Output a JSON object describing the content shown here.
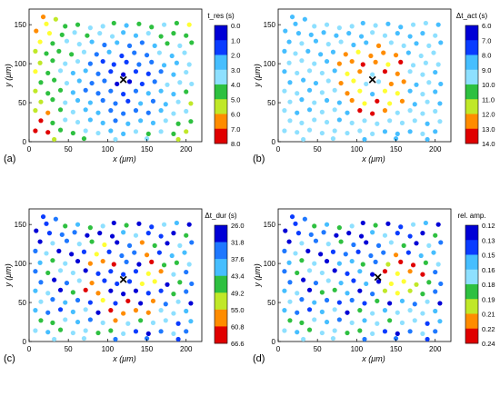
{
  "palette": [
    "#0000d6",
    "#0a3cff",
    "#1e78ff",
    "#46beff",
    "#8ee0ff",
    "#2ec040",
    "#c0e828",
    "#ffff33",
    "#ff8c00",
    "#e00000"
  ],
  "point_positions": [
    [
      18,
      160
    ],
    [
      34,
      157
    ],
    [
      22,
      151
    ],
    [
      46,
      148
    ],
    [
      62,
      150
    ],
    [
      78,
      146
    ],
    [
      94,
      148
    ],
    [
      108,
      152
    ],
    [
      124,
      149
    ],
    [
      140,
      151
    ],
    [
      156,
      147
    ],
    [
      172,
      150
    ],
    [
      188,
      152
    ],
    [
      204,
      150
    ],
    [
      9,
      142
    ],
    [
      26,
      139
    ],
    [
      42,
      137
    ],
    [
      58,
      140
    ],
    [
      74,
      136
    ],
    [
      90,
      139
    ],
    [
      106,
      135
    ],
    [
      120,
      140
    ],
    [
      136,
      136
    ],
    [
      152,
      139
    ],
    [
      168,
      135
    ],
    [
      184,
      139
    ],
    [
      200,
      136
    ],
    [
      14,
      128
    ],
    [
      30,
      126
    ],
    [
      48,
      129
    ],
    [
      64,
      125
    ],
    [
      80,
      128
    ],
    [
      96,
      124
    ],
    [
      112,
      127
    ],
    [
      128,
      123
    ],
    [
      144,
      127
    ],
    [
      160,
      123
    ],
    [
      176,
      126
    ],
    [
      192,
      123
    ],
    [
      207,
      127
    ],
    [
      8,
      116
    ],
    [
      22,
      113
    ],
    [
      38,
      116
    ],
    [
      54,
      112
    ],
    [
      70,
      115
    ],
    [
      86,
      112
    ],
    [
      102,
      115
    ],
    [
      118,
      110
    ],
    [
      134,
      114
    ],
    [
      150,
      111
    ],
    [
      166,
      114
    ],
    [
      182,
      110
    ],
    [
      198,
      114
    ],
    [
      14,
      101
    ],
    [
      30,
      104
    ],
    [
      46,
      100
    ],
    [
      62,
      103
    ],
    [
      78,
      100
    ],
    [
      94,
      103
    ],
    [
      108,
      99
    ],
    [
      124,
      102
    ],
    [
      140,
      99
    ],
    [
      156,
      102
    ],
    [
      172,
      98
    ],
    [
      188,
      101
    ],
    [
      204,
      99
    ],
    [
      8,
      90
    ],
    [
      24,
      88
    ],
    [
      40,
      91
    ],
    [
      56,
      88
    ],
    [
      72,
      91
    ],
    [
      88,
      87
    ],
    [
      104,
      90
    ],
    [
      120,
      86
    ],
    [
      136,
      90
    ],
    [
      152,
      87
    ],
    [
      168,
      90
    ],
    [
      184,
      86
    ],
    [
      200,
      89
    ],
    [
      15,
      76
    ],
    [
      32,
      79
    ],
    [
      48,
      75
    ],
    [
      64,
      78
    ],
    [
      80,
      75
    ],
    [
      96,
      78
    ],
    [
      112,
      74
    ],
    [
      128,
      77
    ],
    [
      144,
      74
    ],
    [
      160,
      77
    ],
    [
      176,
      73
    ],
    [
      192,
      76
    ],
    [
      207,
      74
    ],
    [
      8,
      65
    ],
    [
      24,
      62
    ],
    [
      40,
      66
    ],
    [
      56,
      63
    ],
    [
      72,
      66
    ],
    [
      88,
      62
    ],
    [
      104,
      65
    ],
    [
      120,
      61
    ],
    [
      136,
      65
    ],
    [
      152,
      62
    ],
    [
      168,
      65
    ],
    [
      184,
      61
    ],
    [
      200,
      64
    ],
    [
      15,
      51
    ],
    [
      30,
      54
    ],
    [
      46,
      50
    ],
    [
      62,
      53
    ],
    [
      78,
      50
    ],
    [
      94,
      53
    ],
    [
      110,
      49
    ],
    [
      126,
      52
    ],
    [
      142,
      49
    ],
    [
      158,
      52
    ],
    [
      174,
      48
    ],
    [
      190,
      51
    ],
    [
      206,
      49
    ],
    [
      8,
      40
    ],
    [
      24,
      37
    ],
    [
      40,
      41
    ],
    [
      56,
      38
    ],
    [
      72,
      41
    ],
    [
      88,
      37
    ],
    [
      104,
      40
    ],
    [
      120,
      36
    ],
    [
      136,
      40
    ],
    [
      152,
      37
    ],
    [
      168,
      40
    ],
    [
      184,
      36
    ],
    [
      200,
      39
    ],
    [
      15,
      27
    ],
    [
      30,
      24
    ],
    [
      46,
      28
    ],
    [
      62,
      25
    ],
    [
      78,
      28
    ],
    [
      94,
      24
    ],
    [
      110,
      27
    ],
    [
      126,
      23
    ],
    [
      142,
      27
    ],
    [
      158,
      24
    ],
    [
      174,
      27
    ],
    [
      190,
      23
    ],
    [
      206,
      26
    ],
    [
      8,
      14
    ],
    [
      24,
      12
    ],
    [
      40,
      15
    ],
    [
      56,
      11
    ],
    [
      72,
      14
    ],
    [
      88,
      11
    ],
    [
      104,
      14
    ],
    [
      120,
      10
    ],
    [
      136,
      13
    ],
    [
      152,
      10
    ],
    [
      168,
      13
    ],
    [
      184,
      10
    ],
    [
      200,
      13
    ],
    [
      32,
      3
    ],
    [
      70,
      4
    ],
    [
      110,
      3
    ],
    [
      150,
      4
    ],
    [
      190,
      3
    ]
  ],
  "chart_data": [
    {
      "type": "scatter",
      "panel_label": "(a)",
      "xlabel": "x (μm)",
      "ylabel": "y (μm)",
      "xlim": [
        0,
        220
      ],
      "ylim": [
        0,
        170
      ],
      "xticks": [
        0,
        50,
        100,
        150,
        200
      ],
      "yticks": [
        0,
        50,
        100,
        150
      ],
      "marker": {
        "label": "×",
        "x": 120,
        "y": 79
      },
      "colorbar": {
        "title": "t_res (s)",
        "ticks": [
          "0.0",
          "1.0",
          "2.0",
          "3.0",
          "4.0",
          "5.0",
          "6.0",
          "7.0",
          "8.0"
        ]
      },
      "color_mode": "radial_low",
      "color_spread": 1.0,
      "series": [
        {
          "values": "see point_positions; colour class by distance from marker"
        }
      ]
    },
    {
      "type": "scatter",
      "panel_label": "(b)",
      "xlabel": "x (μm)",
      "ylabel": "y (μm)",
      "xlim": [
        0,
        220
      ],
      "ylim": [
        0,
        170
      ],
      "xticks": [
        0,
        50,
        100,
        150,
        200
      ],
      "yticks": [
        0,
        50,
        100,
        150
      ],
      "marker": {
        "label": "×",
        "x": 120,
        "y": 79
      },
      "colorbar": {
        "title": "Δt_act (s)",
        "ticks": [
          "6.0",
          "7.0",
          "8.0",
          "9.0",
          "10.0",
          "11.0",
          "12.0",
          "13.0",
          "14.0"
        ]
      },
      "color_mode": "ring_high",
      "color_spread": 0.6,
      "series": [
        {
          "values": "see point_positions"
        }
      ]
    },
    {
      "type": "scatter",
      "panel_label": "(c)",
      "xlabel": "x (μm)",
      "ylabel": "y (μm)",
      "xlim": [
        0,
        220
      ],
      "ylim": [
        0,
        170
      ],
      "xticks": [
        0,
        50,
        100,
        150,
        200
      ],
      "yticks": [
        0,
        50,
        100,
        150
      ],
      "marker": {
        "label": "×",
        "x": 120,
        "y": 79
      },
      "colorbar": {
        "title": "Δt_dur (s)",
        "ticks": [
          "26.0",
          "31.8",
          "37.6",
          "43.4",
          "49.2",
          "55.0",
          "60.8",
          "66.6"
        ]
      },
      "color_mode": "mixed",
      "color_spread": 1.0,
      "series": [
        {
          "values": "see point_positions"
        }
      ]
    },
    {
      "type": "scatter",
      "panel_label": "(d)",
      "xlabel": "x (μm)",
      "ylabel": "y (μm)",
      "xlim": [
        0,
        220
      ],
      "ylim": [
        0,
        170
      ],
      "xticks": [
        0,
        50,
        100,
        150,
        200
      ],
      "yticks": [
        0,
        50,
        100,
        150
      ],
      "marker": {
        "label": "×",
        "x": 127,
        "y": 82
      },
      "colorbar": {
        "title": "rel. amp.",
        "ticks": [
          "0.12",
          "0.13",
          "0.15",
          "0.16",
          "0.18",
          "0.19",
          "0.21",
          "0.22",
          "0.24"
        ]
      },
      "color_mode": "mixed_d",
      "color_spread": 1.0,
      "series": [
        {
          "values": "see point_positions"
        }
      ]
    }
  ]
}
